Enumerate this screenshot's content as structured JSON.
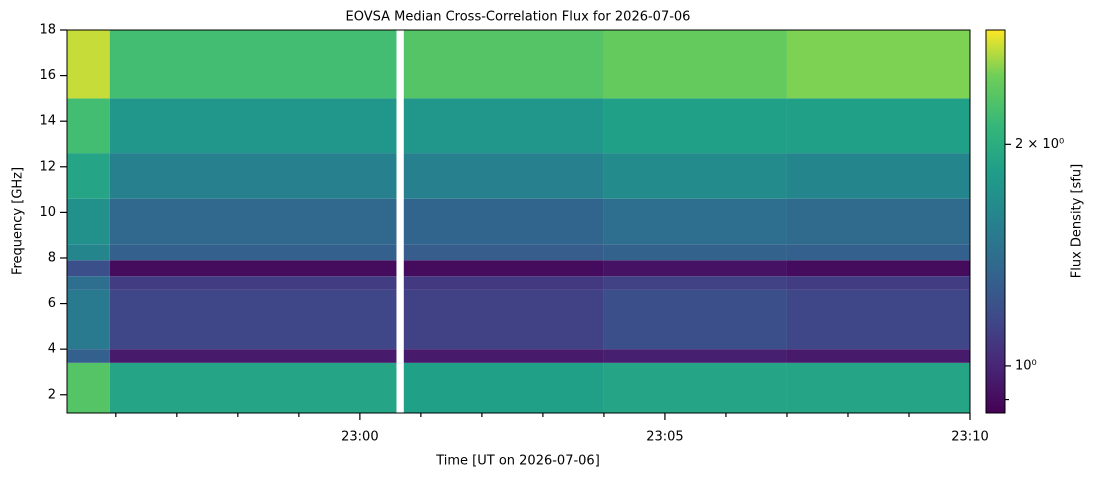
{
  "chart_data": {
    "type": "heatmap",
    "title": "EOVSA Median Cross-Correlation Flux for 2026-07-06",
    "x_label": "Time [UT on 2026-07-06]",
    "y_label": "Frequency [GHz]",
    "colorbar_label": "Flux Density [sfu]",
    "colormap": "viridis",
    "color_scale": "log",
    "x_edges": [
      1375.2,
      1375.9,
      1380.6,
      1380.72,
      1384,
      1387,
      1390
    ],
    "y_edges": [
      1.2,
      3.4,
      4.0,
      6.6,
      7.2,
      7.9,
      8.6,
      10.6,
      12.6,
      15.0,
      18
    ],
    "values": [
      [
        2.3,
        1.9,
        null,
        1.85,
        1.9,
        1.9
      ],
      [
        1.3,
        0.95,
        null,
        0.95,
        0.97,
        0.95
      ],
      [
        1.5,
        1.15,
        null,
        1.12,
        1.2,
        1.15
      ],
      [
        1.4,
        1.1,
        null,
        1.08,
        1.12,
        1.1
      ],
      [
        1.2,
        0.9,
        null,
        0.9,
        0.92,
        0.9
      ],
      [
        1.6,
        1.3,
        null,
        1.28,
        1.32,
        1.3
      ],
      [
        1.7,
        1.35,
        null,
        1.33,
        1.4,
        1.38
      ],
      [
        1.9,
        1.55,
        null,
        1.55,
        1.65,
        1.6
      ],
      [
        2.2,
        1.75,
        null,
        1.75,
        1.85,
        1.85
      ],
      [
        2.7,
        2.2,
        null,
        2.3,
        2.4,
        2.5
      ]
    ],
    "xlim": [
      1375.2,
      1390
    ],
    "xticks": [
      {
        "value": 1380,
        "label": "23:00"
      },
      {
        "value": 1385,
        "label": "23:05"
      },
      {
        "value": 1390,
        "label": "23:10"
      }
    ],
    "xminorticks": [
      1376,
      1377,
      1378,
      1379,
      1381,
      1382,
      1383,
      1384,
      1386,
      1387,
      1388,
      1389
    ],
    "ylim": [
      1.2,
      18
    ],
    "yticks": [
      2,
      4,
      6,
      8,
      10,
      12,
      14,
      16,
      18
    ],
    "clim": [
      0.863,
      2.86
    ],
    "cticks": [
      {
        "value": 1,
        "label": "10⁰"
      },
      {
        "value": 2,
        "label": "2 × 10⁰"
      }
    ],
    "cminorticks": [
      0.9
    ]
  }
}
